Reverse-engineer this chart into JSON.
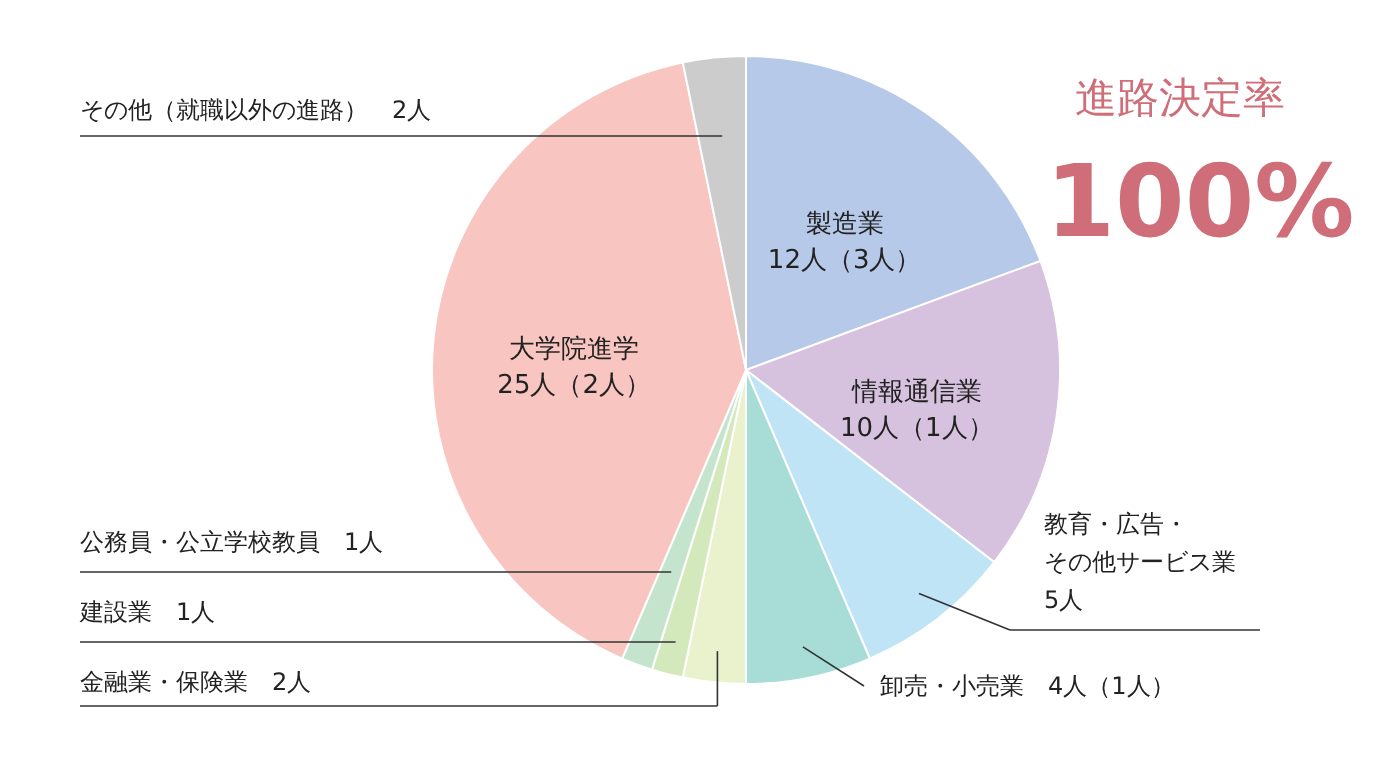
{
  "chart_data": {
    "type": "pie",
    "title": "進路決定率",
    "subtitle": "100%",
    "categories": [
      "製造業",
      "情報通信業",
      "教育・広告・その他サービス業",
      "卸売・小売業",
      "金融業・保険業",
      "建設業",
      "公務員・公立学校教員",
      "大学院進学",
      "その他（就職以外の進路）"
    ],
    "values": [
      12,
      10,
      5,
      4,
      2,
      1,
      1,
      25,
      2
    ],
    "colors": [
      "#b6c9e8",
      "#d6c1df",
      "#bfe4f6",
      "#a8dcd6",
      "#e9f2cc",
      "#d3e9bb",
      "#c5e4cd",
      "#f8c5c1",
      "#cccccc"
    ],
    "value_labels": [
      "12人（3人）",
      "10人（1人）",
      "5人",
      "4人（1人）",
      "2人",
      "1人",
      "1人",
      "25人（2人）",
      "2人"
    ]
  }
}
